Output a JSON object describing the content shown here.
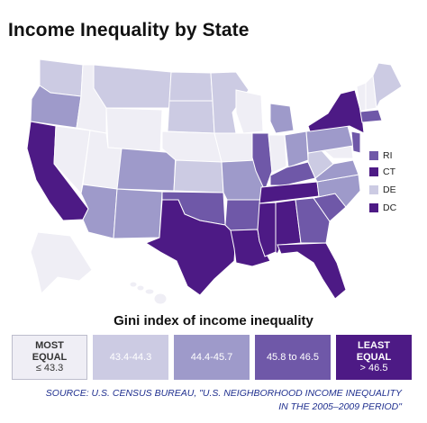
{
  "title": "Income Inequality by State",
  "colors": {
    "c1": "#efeef5",
    "c2": "#cccbe3",
    "c3": "#9e9aca",
    "c4": "#6f58a8",
    "c5": "#4d1a85"
  },
  "small_states": [
    {
      "label": "RI",
      "color": "#6f58a8"
    },
    {
      "label": "CT",
      "color": "#4d1a85"
    },
    {
      "label": "DE",
      "color": "#cccbe3"
    },
    {
      "label": "DC",
      "color": "#4d1a85"
    }
  ],
  "legend": {
    "title": "Gini index of income inequality",
    "items": [
      {
        "line1": "MOST",
        "line2": "EQUAL",
        "line3": "≤ 43.3",
        "color": "#efeef5",
        "text_color": "#333333"
      },
      {
        "line1": "",
        "line2": "",
        "line3": "43.4-44.3",
        "color": "#cccbe3",
        "text_color": "#ffffff"
      },
      {
        "line1": "",
        "line2": "",
        "line3": "44.4-45.7",
        "color": "#9e9aca",
        "text_color": "#ffffff"
      },
      {
        "line1": "",
        "line2": "",
        "line3": "45.8 to 46.5",
        "color": "#6f58a8",
        "text_color": "#ffffff"
      },
      {
        "line1": "LEAST",
        "line2": "EQUAL",
        "line3": "> 46.5",
        "color": "#4d1a85",
        "text_color": "#ffffff"
      }
    ]
  },
  "source": {
    "line1": "SOURCE: U.S. CENSUS BUREAU, \"U.S. NEIGHBORHOOD INCOME INEQUALITY",
    "line2": "IN THE 2005–2009 PERIOD\""
  }
}
